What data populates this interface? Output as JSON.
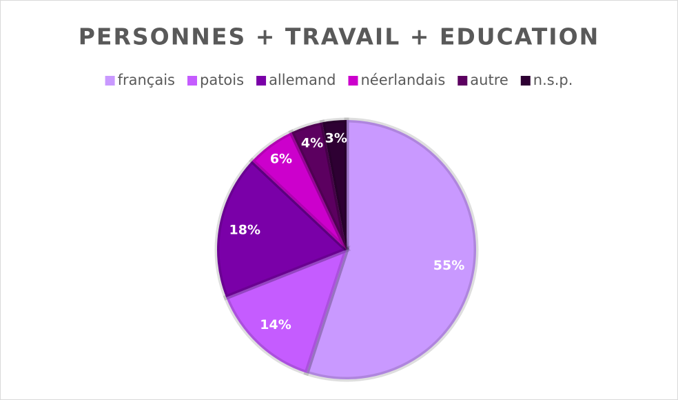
{
  "chart_data": {
    "type": "pie",
    "title": "PERSONNES + TRAVAIL + EDUCATION",
    "categories": [
      "français",
      "patois",
      "allemand",
      "néerlandais",
      "autre",
      "n.s.p."
    ],
    "values": [
      55,
      14,
      18,
      6,
      4,
      3
    ],
    "value_labels": [
      "55%",
      "14%",
      "18%",
      "6%",
      "4%",
      "3%"
    ],
    "colors": [
      "#c999ff",
      "#c55cff",
      "#7a00a8",
      "#cc00cc",
      "#5c0060",
      "#2e0033"
    ],
    "legend": "top"
  }
}
